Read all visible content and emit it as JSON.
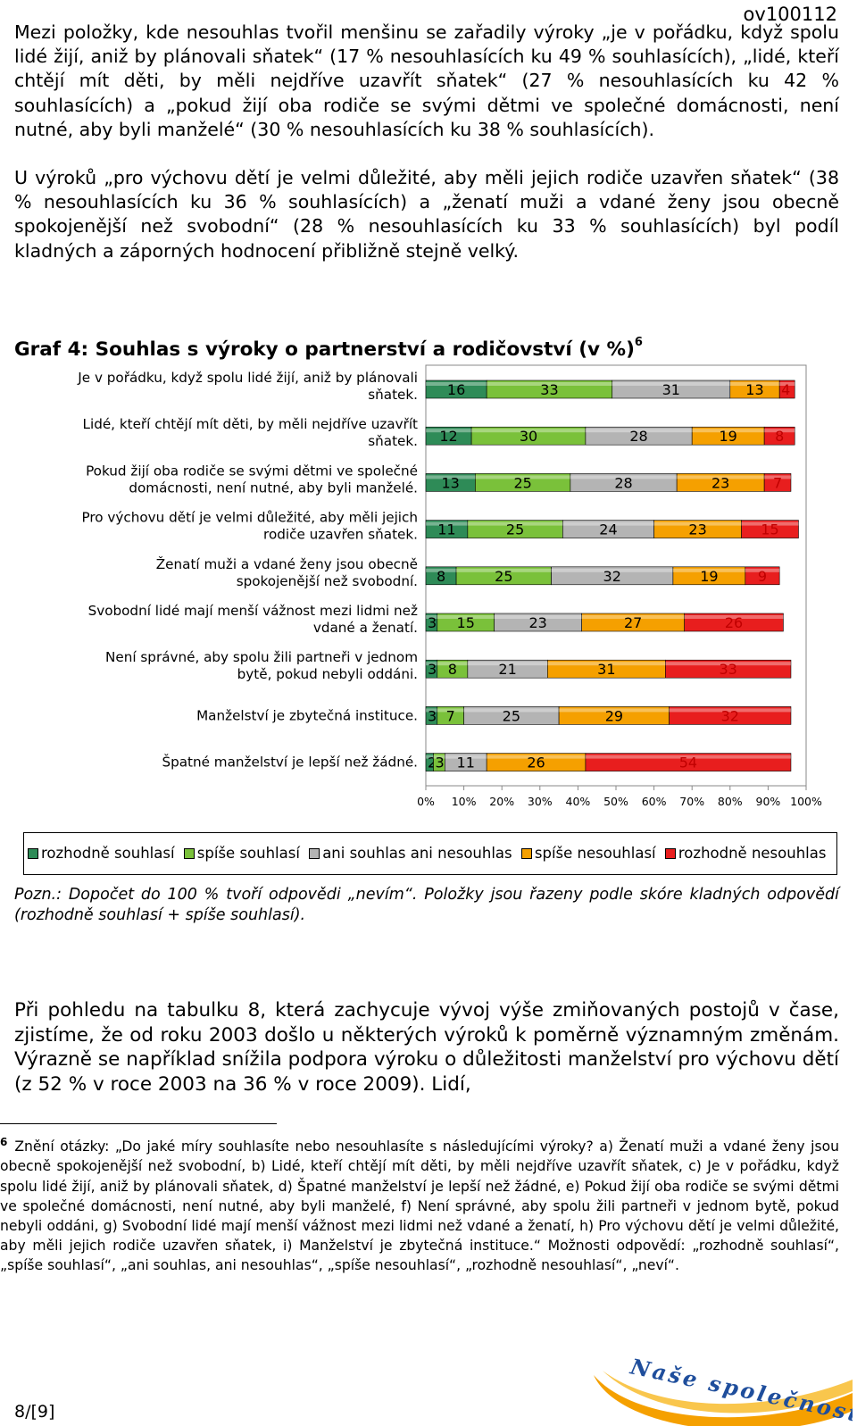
{
  "doc_id": "ov100112",
  "paragraphs": {
    "p1": "Mezi položky, kde nesouhlas tvořil menšinu se zařadily výroky „je v pořádku, když spolu lidé žijí, aniž by plánovali sňatek“ (17 % nesouhlasících ku 49 % souhlasících), „lidé, kteří chtějí mít děti, by měli nejdříve uzavřít sňatek“ (27 % nesouhlasících ku 42 % souhlasících) a „pokud žijí oba rodiče se svými dětmi ve společné domácnosti, není nutné, aby byli manželé“ (30 % nesouhlasících ku 38 % souhlasících).",
    "p2": "U výroků „pro výchovu dětí je velmi důležité, aby měli jejich rodiče uzavřen sňatek“ (38 % nesouhlasících ku 36 % souhlasících) a „ženatí muži a vdané ženy jsou obecně spokojenější než svobodní“ (28 % nesouhlasících ku 33 % souhlasících) byl podíl kladných a záporných hodnocení přibližně stejně velký.",
    "p3": "Při pohledu na tabulku 8, která zachycuje vývoj výše zmiňovaných postojů v čase, zjistíme, že od roku 2003 došlo u některých výroků k poměrně významným změnám. Výrazně se například snížila podpora výroku o důležitosti manželství pro výchovu dětí (z 52 % v roce 2003 na 36 % v roce 2009). Lidí,"
  },
  "chart_title": "Graf 4: Souhlas s výroky o partnerství a rodičovství (v %)",
  "chart_title_sup": "6",
  "chart_data": {
    "type": "bar",
    "orientation": "horizontal",
    "stacked": true,
    "categories": [
      "Je v pořádku, když spolu lidé žijí, aniž by plánovali sňatek.",
      "Lidé, kteří chtějí mít děti, by měli nejdříve uzavřít sňatek.",
      "Pokud žijí oba rodiče se svými dětmi ve společné domácnosti, není nutné, aby byli manželé.",
      "Pro výchovu dětí je velmi důležité, aby měli jejich rodiče uzavřen sňatek.",
      "Ženatí muži a vdané ženy jsou obecně spokojenější než svobodní.",
      "Svobodní lidé mají menší vážnost mezi lidmi než vdané a ženatí.",
      "Není správné, aby spolu žili partneři v jednom bytě, pokud nebyli oddáni.",
      "Manželství je zbytečná instituce.",
      "Špatné manželství je lepší než žádné."
    ],
    "series": [
      {
        "name": "rozhodně souhlasí",
        "color": "#2e8b57",
        "values": [
          16,
          12,
          13,
          11,
          8,
          3,
          3,
          3,
          2
        ]
      },
      {
        "name": "spíše souhlasí",
        "color": "#7ac13a",
        "values": [
          33,
          30,
          25,
          25,
          25,
          15,
          8,
          7,
          3
        ]
      },
      {
        "name": "ani souhlas ani nesouhlas",
        "color": "#b4b4b4",
        "values": [
          31,
          28,
          28,
          24,
          32,
          23,
          21,
          25,
          11
        ]
      },
      {
        "name": "spíše nesouhlasí",
        "color": "#f5a000",
        "values": [
          13,
          19,
          23,
          23,
          19,
          27,
          31,
          29,
          26
        ]
      },
      {
        "name": "rozhodně nesouhlasí",
        "color": "#e81e1e",
        "values": [
          4,
          8,
          7,
          15,
          9,
          26,
          33,
          32,
          54
        ]
      }
    ],
    "xlim": [
      0,
      100
    ],
    "xticks": [
      "0%",
      "10%",
      "20%",
      "30%",
      "40%",
      "50%",
      "60%",
      "70%",
      "80%",
      "90%",
      "100%"
    ],
    "legend_labels": [
      "rozhodně souhlasí",
      "spíše souhlasí",
      "ani souhlas ani nesouhlas",
      "spíše nesouhlasí",
      "rozhodně nesouhlas"
    ],
    "legend_position": "bottom",
    "grid": false
  },
  "note": "Pozn.: Dopočet do 100 % tvoří odpovědi „nevím“. Položky jsou řazeny podle skóre kladných odpovědí (rozhodně souhlasí + spíše souhlasí).",
  "footnote": {
    "marker": "6",
    "text": "Znění otázky: „Do jaké míry souhlasíte nebo nesouhlasíte s následujícími výroky? a) Ženatí muži a vdané ženy jsou obecně spokojenější než svobodní, b) Lidé, kteří chtějí mít děti, by měli nejdříve uzavřít sňatek, c) Je v pořádku, když spolu lidé žijí, aniž by plánovali sňatek, d) Špatné manželství je lepší než žádné, e) Pokud žijí oba rodiče se svými dětmi ve společné domácnosti, není nutné, aby byli manželé, f) Není správné, aby spolu žili partneři v jednom bytě, pokud nebyli oddáni, g) Svobodní lidé mají menší vážnost mezi lidmi než vdané a ženatí, h) Pro výchovu dětí je velmi důležité, aby měli jejich rodiče uzavřen sňatek, i) Manželství je zbytečná instituce.“ Možnosti odpovědí: „rozhodně souhlasí“, „spíše souhlasí“, „ani souhlas, ani nesouhlas“, „spíše nesouhlasí“, „rozhodně nesouhlasí“, „neví“."
  },
  "page_number": "8/[9]",
  "logo_text": "Naše společnost",
  "colors": {
    "logo_orange": "#f5a000",
    "logo_blue": "#1f4e9c"
  }
}
